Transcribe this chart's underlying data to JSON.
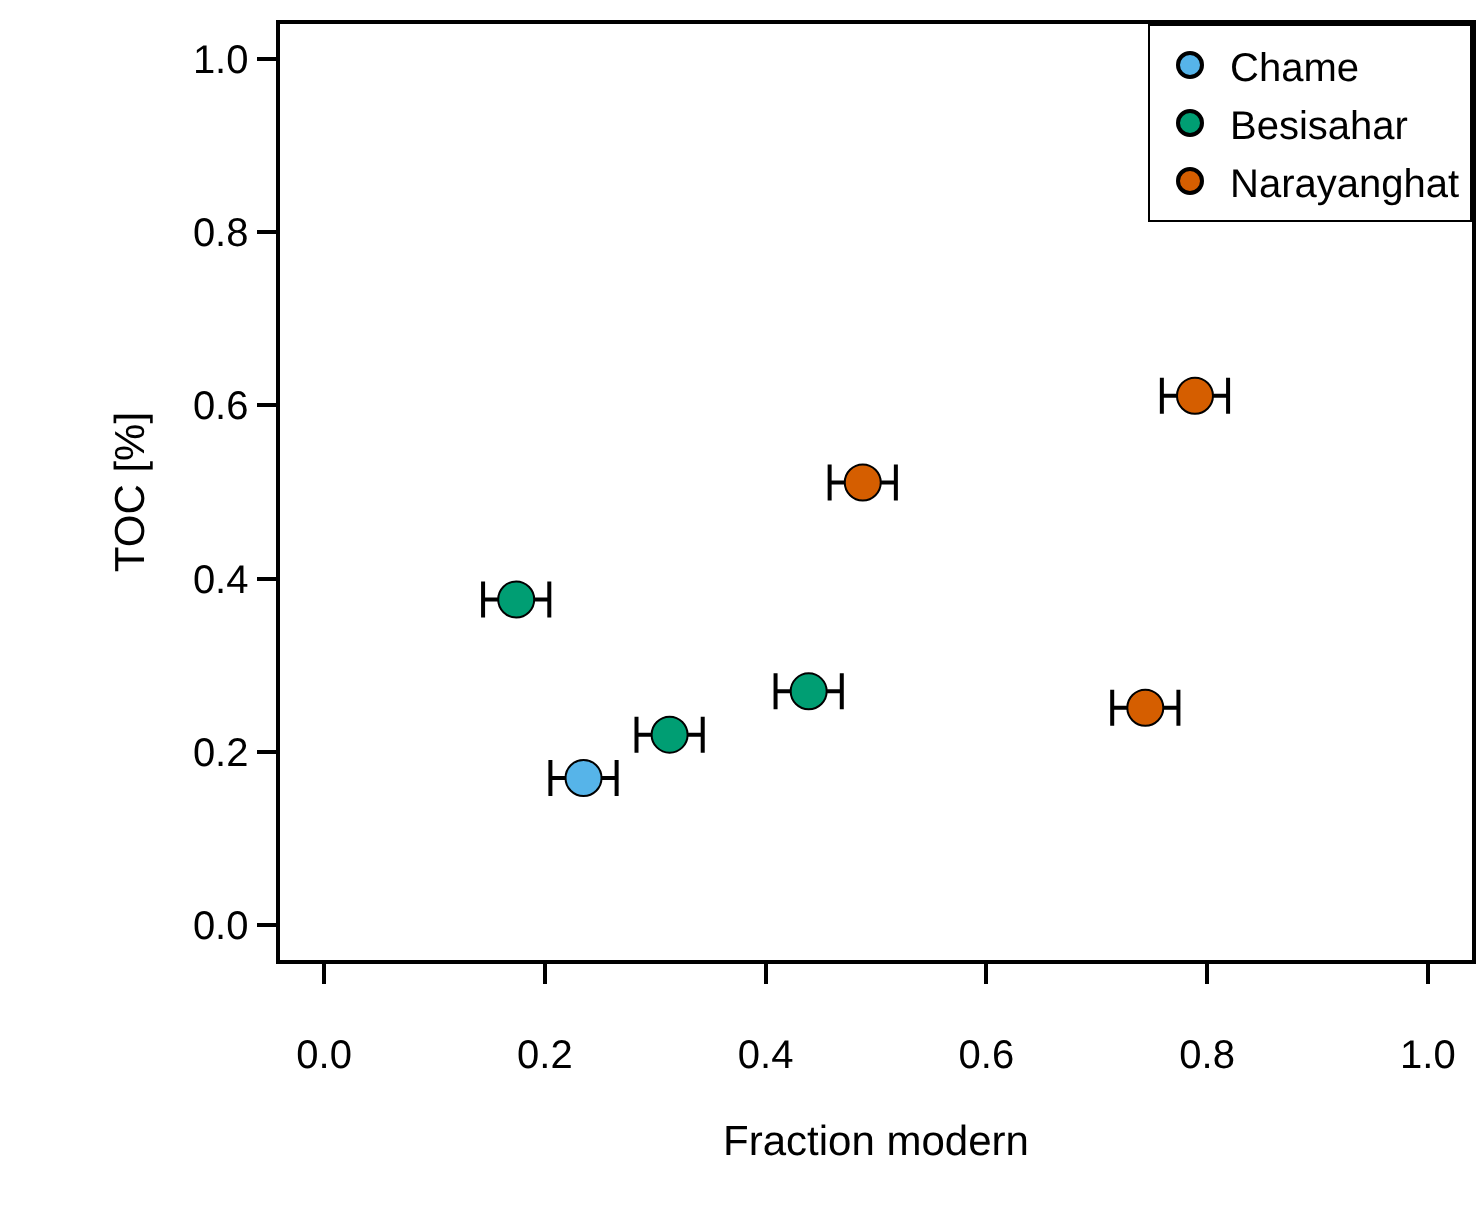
{
  "chart_data": {
    "type": "scatter",
    "xlabel": "Fraction modern",
    "ylabel": "TOC [%]",
    "xlim": [
      -0.04,
      1.04
    ],
    "ylim": [
      -0.04,
      1.04
    ],
    "xticks": [
      {
        "value": 0,
        "label": "0.0"
      },
      0.2,
      0.4,
      0.6,
      0.8,
      {
        "value": 1,
        "label": "1.0"
      }
    ],
    "yticks": [
      {
        "value": 0,
        "label": "0.0"
      },
      0.2,
      0.4,
      0.6,
      0.8,
      {
        "value": 1,
        "label": "1.0"
      }
    ],
    "legend": "top right",
    "marker": "circle",
    "series": [
      {
        "name": "Chame",
        "color": "#56b4e9",
        "x": [
          0.235
        ],
        "values": [
          0.17
        ],
        "xerrors": [
          0.03
        ]
      },
      {
        "name": "Besisahar",
        "color": "#009e73",
        "x": [
          0.174,
          0.313,
          0.439
        ],
        "values": [
          0.376,
          0.22,
          0.27
        ],
        "xerrors": [
          0.03,
          0.03,
          0.03
        ]
      },
      {
        "name": "Narayanghat",
        "color": "#d55e00",
        "x": [
          0.488,
          0.789,
          0.744
        ],
        "values": [
          0.511,
          0.611,
          0.251
        ],
        "xerrors": [
          0.03,
          0.03,
          0.03
        ]
      }
    ]
  }
}
